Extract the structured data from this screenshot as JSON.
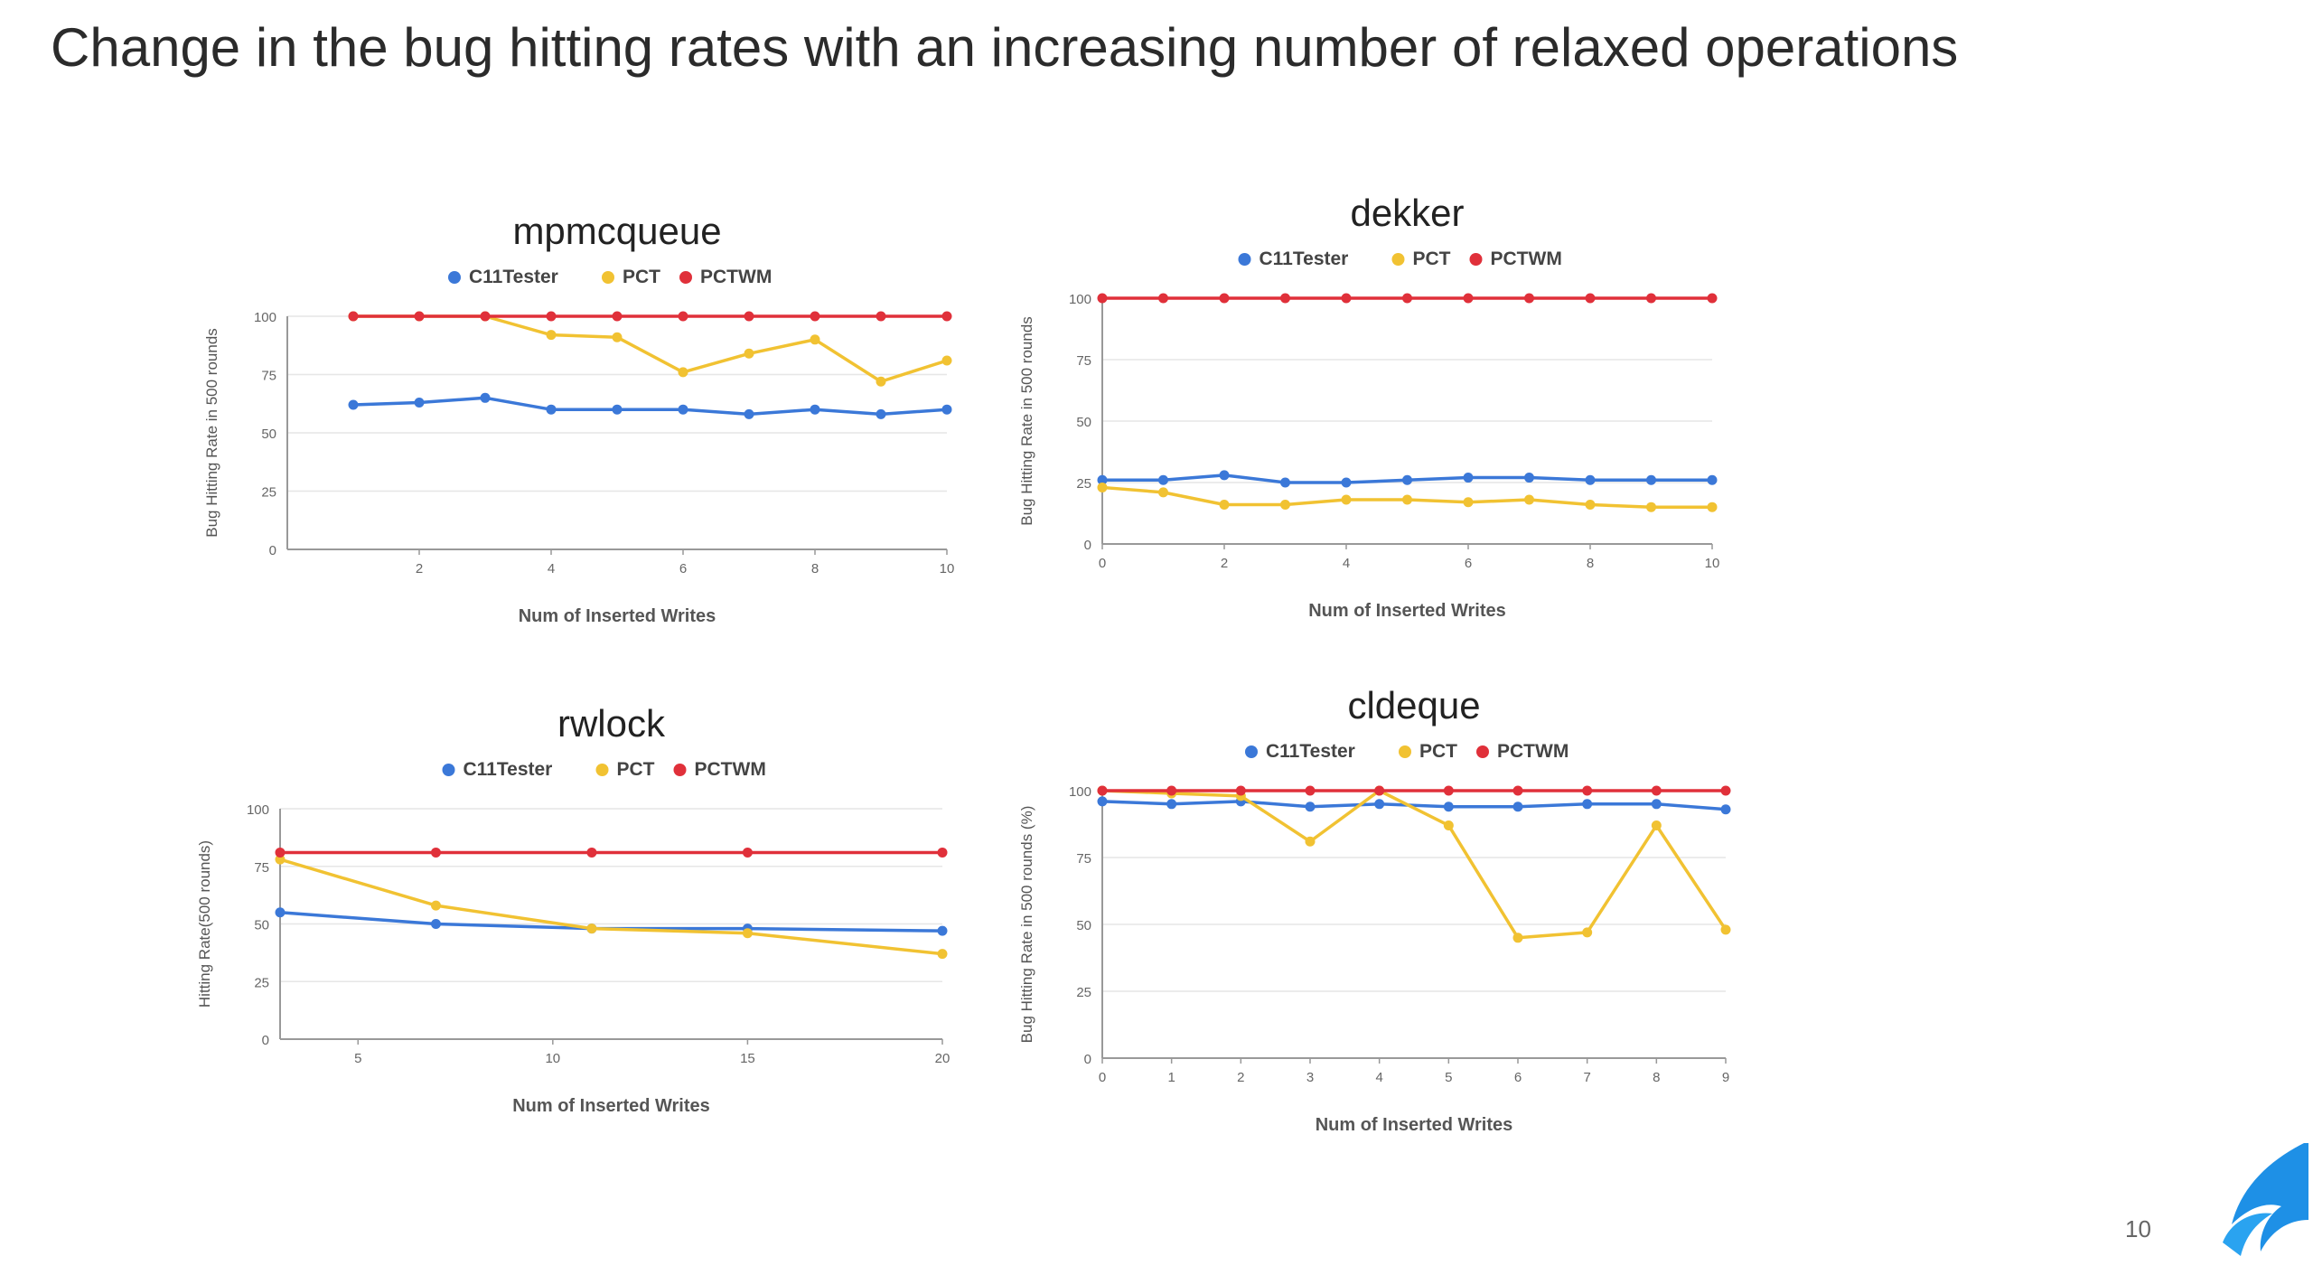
{
  "slide": {
    "title": "Change in the bug hitting rates with an increasing number of relaxed operations",
    "page_number": "10",
    "logo_icon": "wave-logo-icon"
  },
  "colors": {
    "c11tester": "#3b78d8",
    "pct": "#f1c232",
    "pctwm": "#e0303a",
    "grid": "#e6e6e6",
    "axis": "#999999"
  },
  "chart_data": [
    {
      "type": "line",
      "title": "mpmcqueue",
      "xlabel": "Num of Inserted Writes",
      "ylabel": "Bug Hitting Rate in 500 rounds",
      "xlim": [
        0,
        10
      ],
      "ylim": [
        0,
        100
      ],
      "xticks": [
        2,
        4,
        6,
        8,
        10
      ],
      "yticks": [
        0,
        25,
        50,
        75,
        100
      ],
      "grid": true,
      "legend": "top",
      "x": [
        1,
        2,
        3,
        4,
        5,
        6,
        7,
        8,
        9,
        10
      ],
      "series": [
        {
          "name": "C11Tester",
          "color": "#3b78d8",
          "values": [
            62,
            63,
            65,
            60,
            60,
            60,
            58,
            60,
            58,
            60
          ]
        },
        {
          "name": "PCT",
          "color": "#f1c232",
          "values": [
            100,
            100,
            100,
            92,
            91,
            76,
            84,
            90,
            72,
            81
          ]
        },
        {
          "name": "PCTWM",
          "color": "#e0303a",
          "values": [
            100,
            100,
            100,
            100,
            100,
            100,
            100,
            100,
            100,
            100
          ]
        }
      ]
    },
    {
      "type": "line",
      "title": "dekker",
      "xlabel": "Num of Inserted Writes",
      "ylabel": "Bug Hitting Rate in 500 rounds",
      "xlim": [
        0,
        10
      ],
      "ylim": [
        0,
        100
      ],
      "xticks": [
        0,
        2,
        4,
        6,
        8,
        10
      ],
      "yticks": [
        0,
        25,
        50,
        75,
        100
      ],
      "grid": true,
      "legend": "top",
      "x": [
        0,
        1,
        2,
        3,
        4,
        5,
        6,
        7,
        8,
        9,
        10
      ],
      "series": [
        {
          "name": "C11Tester",
          "color": "#3b78d8",
          "values": [
            26,
            26,
            28,
            25,
            25,
            26,
            27,
            27,
            26,
            26,
            26
          ]
        },
        {
          "name": "PCT",
          "color": "#f1c232",
          "values": [
            23,
            21,
            16,
            16,
            18,
            18,
            17,
            18,
            16,
            15,
            15
          ]
        },
        {
          "name": "PCTWM",
          "color": "#e0303a",
          "values": [
            100,
            100,
            100,
            100,
            100,
            100,
            100,
            100,
            100,
            100,
            100
          ]
        }
      ]
    },
    {
      "type": "line",
      "title": "rwlock",
      "xlabel": "Num of Inserted Writes",
      "ylabel": "Hitting Rate(500 rounds)",
      "xlim": [
        3,
        20
      ],
      "ylim": [
        0,
        100
      ],
      "xticks": [
        5,
        10,
        15,
        20
      ],
      "yticks": [
        0,
        25,
        50,
        75,
        100
      ],
      "grid": true,
      "legend": "top",
      "x": [
        3,
        7,
        11,
        15,
        20
      ],
      "series": [
        {
          "name": "C11Tester",
          "color": "#3b78d8",
          "values": [
            55,
            50,
            48,
            48,
            47
          ]
        },
        {
          "name": "PCT",
          "color": "#f1c232",
          "values": [
            78,
            58,
            48,
            46,
            37
          ]
        },
        {
          "name": "PCTWM",
          "color": "#e0303a",
          "values": [
            81,
            81,
            81,
            81,
            81
          ]
        }
      ]
    },
    {
      "type": "line",
      "title": "cldeque",
      "xlabel": "Num of Inserted Writes",
      "ylabel": "Bug Hitting Rate in 500 rounds (%)",
      "xlim": [
        0,
        9
      ],
      "ylim": [
        0,
        100
      ],
      "xticks": [
        0,
        1,
        2,
        3,
        4,
        5,
        6,
        7,
        8,
        9
      ],
      "yticks": [
        0,
        25,
        50,
        75,
        100
      ],
      "grid": true,
      "legend": "top",
      "x": [
        0,
        1,
        2,
        3,
        4,
        5,
        6,
        7,
        8,
        9
      ],
      "series": [
        {
          "name": "C11Tester",
          "color": "#3b78d8",
          "values": [
            96,
            95,
            96,
            94,
            95,
            94,
            94,
            95,
            95,
            93
          ]
        },
        {
          "name": "PCT",
          "color": "#f1c232",
          "values": [
            100,
            99,
            98,
            81,
            100,
            87,
            45,
            47,
            87,
            48
          ]
        },
        {
          "name": "PCTWM",
          "color": "#e0303a",
          "values": [
            100,
            100,
            100,
            100,
            100,
            100,
            100,
            100,
            100,
            100
          ]
        }
      ]
    }
  ]
}
